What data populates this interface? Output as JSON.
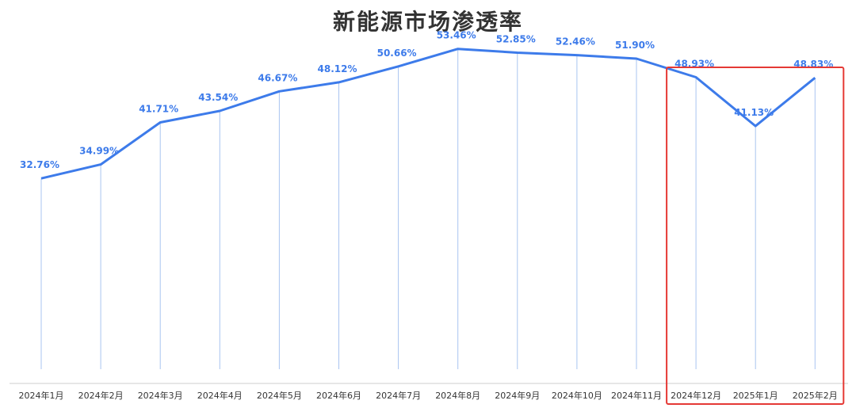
{
  "chart_data": {
    "type": "line",
    "title": "新能源市场渗透率",
    "categories": [
      "2024年1月",
      "2024年2月",
      "2024年3月",
      "2024年4月",
      "2024年5月",
      "2024年6月",
      "2024年7月",
      "2024年8月",
      "2024年9月",
      "2024年10月",
      "2024年11月",
      "2024年12月",
      "2025年1月",
      "2025年2月"
    ],
    "series": [
      {
        "values": [
          32.76,
          34.99,
          41.71,
          43.54,
          46.67,
          48.12,
          50.66,
          53.46,
          52.85,
          52.46,
          51.9,
          48.93,
          41.13,
          48.83
        ],
        "labels": [
          "32.76%",
          "34.99%",
          "41.71%",
          "43.54%",
          "46.67%",
          "48.12%",
          "50.66%",
          "53.46%",
          "52.85%",
          "52.46%",
          "51.90%",
          "48.93%",
          "41.13%",
          "48.83%"
        ]
      }
    ],
    "ylim": [
      0,
      60
    ],
    "grid": false,
    "highlight": {
      "from": "2024年12月",
      "to": "2025年2月"
    }
  },
  "colors": {
    "line": "#3d7bea",
    "label": "#3d7bea",
    "drop": "#a9c4f0",
    "highlight": "#e53935",
    "axis": "#cccccc"
  }
}
